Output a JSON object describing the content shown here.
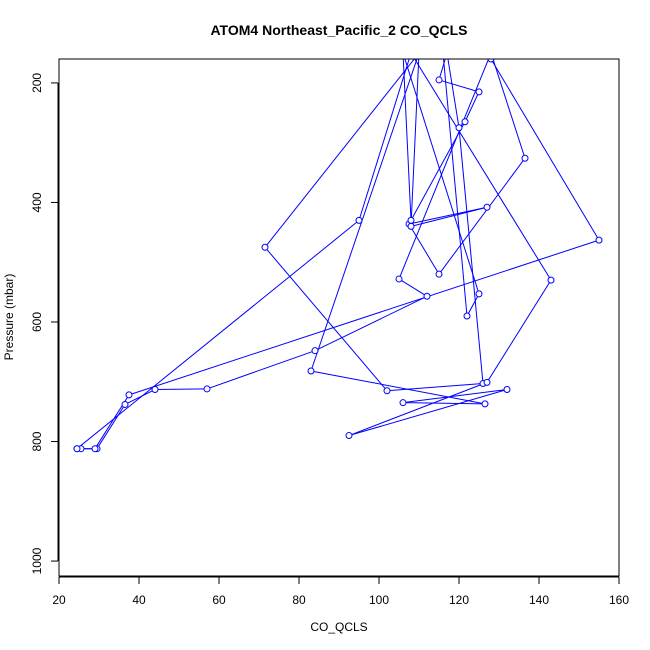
{
  "chart_data": {
    "type": "line",
    "title": "ATOM4 Northeast_Pacific_2 CO_QCLS",
    "xlabel": "CO_QCLS",
    "ylabel": "Pressure (mbar)",
    "xlim": [
      20,
      160
    ],
    "ylim": [
      1025,
      160
    ],
    "y_axis_reversed": true,
    "xticks": [
      20,
      40,
      60,
      80,
      100,
      120,
      140,
      160
    ],
    "yticks": [
      200,
      400,
      600,
      800,
      1000
    ],
    "grid": false,
    "legend": "none",
    "series_color": "#0000ff",
    "marker": "open-circle",
    "series": [
      {
        "x": [
          24.5,
          25.5,
          29.5,
          36.5,
          44,
          57,
          84,
          112,
          105,
          128,
          136.5,
          115,
          107.5,
          127,
          108,
          110,
          71.5,
          102,
          126,
          120,
          117,
          115,
          125,
          121.5,
          108,
          106,
          125,
          122,
          116,
          128,
          155,
          37.5,
          29,
          24.5,
          95,
          108,
          143,
          127,
          92.5,
          132,
          106,
          126.5,
          83,
          110
        ],
        "y": [
          812,
          812,
          812,
          738,
          713,
          712,
          648,
          557,
          528,
          150,
          326,
          520,
          436,
          408,
          440,
          150,
          475,
          715,
          703,
          275,
          150,
          195,
          215,
          265,
          430,
          150,
          553,
          590,
          150,
          160,
          463,
          722,
          812,
          812,
          430,
          150,
          530,
          701,
          790,
          713,
          735,
          737,
          682,
          150
        ]
      }
    ]
  }
}
